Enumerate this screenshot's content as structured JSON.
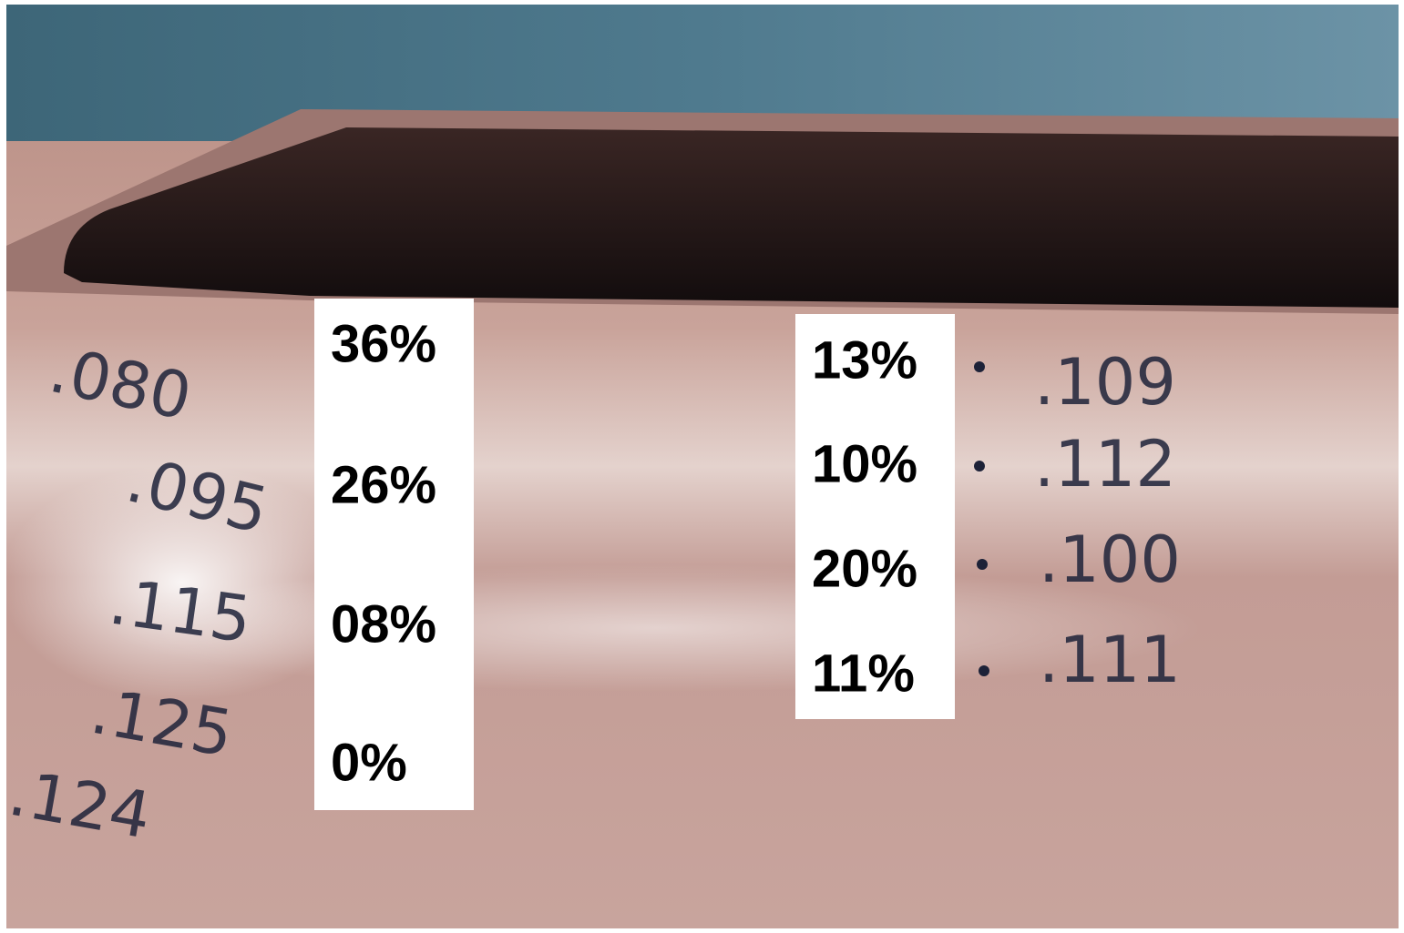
{
  "left_labels": [
    "36%",
    "26%",
    "08%",
    "0%"
  ],
  "right_labels": [
    "13%",
    "10%",
    "20%",
    "11%"
  ],
  "left_handwriting": [
    ".080",
    ".095",
    ".115",
    ".125",
    ".124"
  ],
  "right_handwriting": [
    ".109",
    ".112",
    ".100",
    ".111"
  ]
}
